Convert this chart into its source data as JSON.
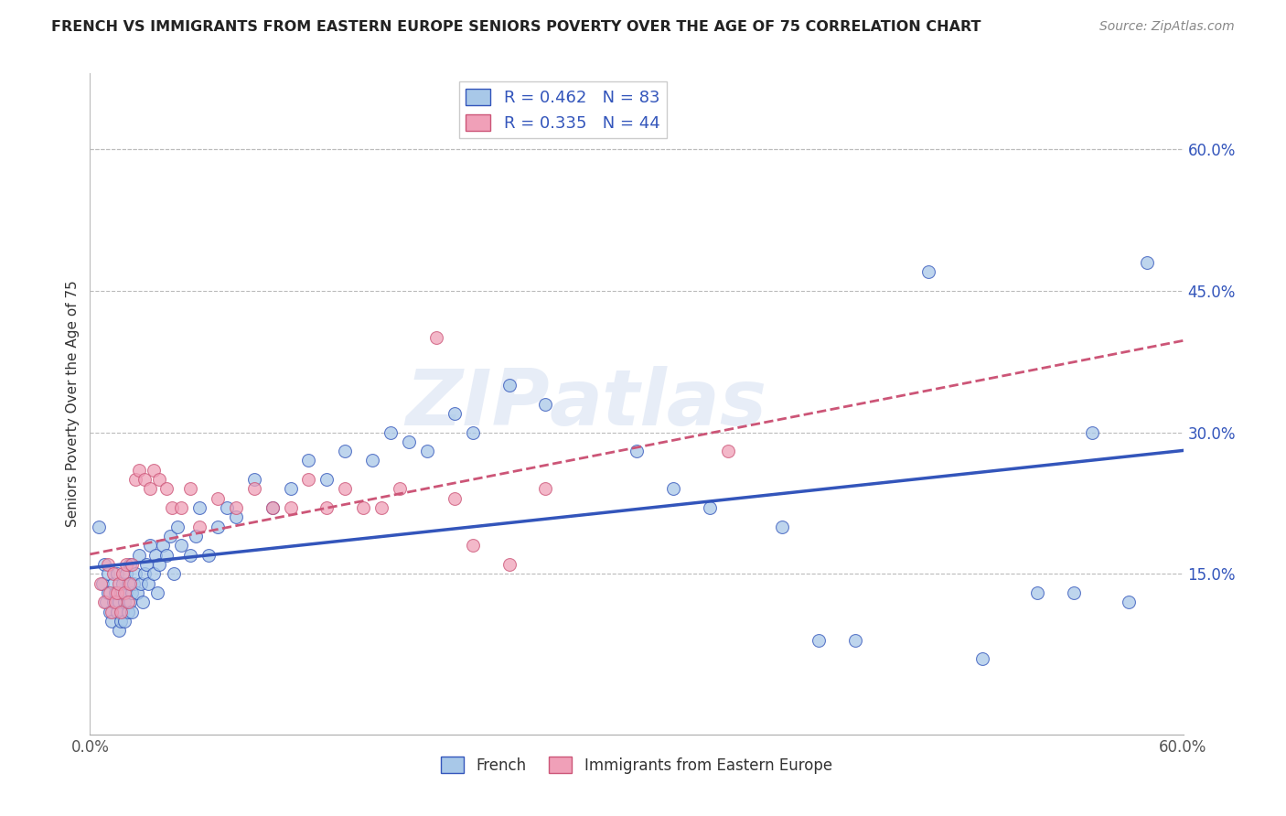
{
  "title": "FRENCH VS IMMIGRANTS FROM EASTERN EUROPE SENIORS POVERTY OVER THE AGE OF 75 CORRELATION CHART",
  "source": "Source: ZipAtlas.com",
  "ylabel": "Seniors Poverty Over the Age of 75",
  "xlim": [
    0.0,
    0.6
  ],
  "ylim": [
    -0.02,
    0.68
  ],
  "xtick_vals": [
    0.0,
    0.1,
    0.2,
    0.3,
    0.4,
    0.5,
    0.6
  ],
  "xtick_labels": [
    "0.0%",
    "",
    "",
    "",
    "",
    "",
    "60.0%"
  ],
  "ytick_vals": [
    0.15,
    0.3,
    0.45,
    0.6
  ],
  "ytick_labels": [
    "15.0%",
    "30.0%",
    "45.0%",
    "60.0%"
  ],
  "R_french": 0.462,
  "N_french": 83,
  "R_eastern": 0.335,
  "N_eastern": 44,
  "color_french": "#A8C8E8",
  "color_eastern": "#F0A0B8",
  "line_color_french": "#3355BB",
  "line_color_eastern": "#CC5577",
  "watermark": "ZIPatlas",
  "french_x": [
    0.005,
    0.007,
    0.008,
    0.009,
    0.01,
    0.01,
    0.011,
    0.012,
    0.013,
    0.013,
    0.014,
    0.015,
    0.015,
    0.016,
    0.016,
    0.017,
    0.017,
    0.018,
    0.018,
    0.019,
    0.019,
    0.02,
    0.02,
    0.021,
    0.021,
    0.022,
    0.022,
    0.023,
    0.023,
    0.024,
    0.025,
    0.026,
    0.027,
    0.028,
    0.029,
    0.03,
    0.031,
    0.032,
    0.033,
    0.035,
    0.036,
    0.037,
    0.038,
    0.04,
    0.042,
    0.044,
    0.046,
    0.048,
    0.05,
    0.055,
    0.058,
    0.06,
    0.065,
    0.07,
    0.075,
    0.08,
    0.09,
    0.1,
    0.11,
    0.12,
    0.13,
    0.14,
    0.155,
    0.165,
    0.175,
    0.185,
    0.2,
    0.21,
    0.23,
    0.25,
    0.3,
    0.32,
    0.34,
    0.38,
    0.4,
    0.42,
    0.46,
    0.49,
    0.52,
    0.54,
    0.55,
    0.57,
    0.58
  ],
  "french_y": [
    0.2,
    0.14,
    0.16,
    0.12,
    0.13,
    0.15,
    0.11,
    0.1,
    0.12,
    0.14,
    0.13,
    0.11,
    0.15,
    0.09,
    0.12,
    0.1,
    0.13,
    0.11,
    0.14,
    0.12,
    0.1,
    0.13,
    0.15,
    0.11,
    0.14,
    0.12,
    0.16,
    0.13,
    0.11,
    0.14,
    0.15,
    0.13,
    0.17,
    0.14,
    0.12,
    0.15,
    0.16,
    0.14,
    0.18,
    0.15,
    0.17,
    0.13,
    0.16,
    0.18,
    0.17,
    0.19,
    0.15,
    0.2,
    0.18,
    0.17,
    0.19,
    0.22,
    0.17,
    0.2,
    0.22,
    0.21,
    0.25,
    0.22,
    0.24,
    0.27,
    0.25,
    0.28,
    0.27,
    0.3,
    0.29,
    0.28,
    0.32,
    0.3,
    0.35,
    0.33,
    0.28,
    0.24,
    0.22,
    0.2,
    0.08,
    0.08,
    0.47,
    0.06,
    0.13,
    0.13,
    0.3,
    0.12,
    0.48
  ],
  "eastern_x": [
    0.006,
    0.008,
    0.01,
    0.011,
    0.012,
    0.013,
    0.014,
    0.015,
    0.016,
    0.017,
    0.018,
    0.019,
    0.02,
    0.021,
    0.022,
    0.023,
    0.025,
    0.027,
    0.03,
    0.033,
    0.035,
    0.038,
    0.042,
    0.045,
    0.05,
    0.055,
    0.06,
    0.07,
    0.08,
    0.09,
    0.1,
    0.11,
    0.12,
    0.13,
    0.14,
    0.15,
    0.16,
    0.17,
    0.19,
    0.2,
    0.21,
    0.23,
    0.25,
    0.35
  ],
  "eastern_y": [
    0.14,
    0.12,
    0.16,
    0.13,
    0.11,
    0.15,
    0.12,
    0.13,
    0.14,
    0.11,
    0.15,
    0.13,
    0.16,
    0.12,
    0.14,
    0.16,
    0.25,
    0.26,
    0.25,
    0.24,
    0.26,
    0.25,
    0.24,
    0.22,
    0.22,
    0.24,
    0.2,
    0.23,
    0.22,
    0.24,
    0.22,
    0.22,
    0.25,
    0.22,
    0.24,
    0.22,
    0.22,
    0.24,
    0.4,
    0.23,
    0.18,
    0.16,
    0.24,
    0.28
  ],
  "french_scatter_size": 100,
  "eastern_scatter_size": 100,
  "background_color": "#FFFFFF",
  "grid_color": "#BBBBBB",
  "grid_style": "--"
}
